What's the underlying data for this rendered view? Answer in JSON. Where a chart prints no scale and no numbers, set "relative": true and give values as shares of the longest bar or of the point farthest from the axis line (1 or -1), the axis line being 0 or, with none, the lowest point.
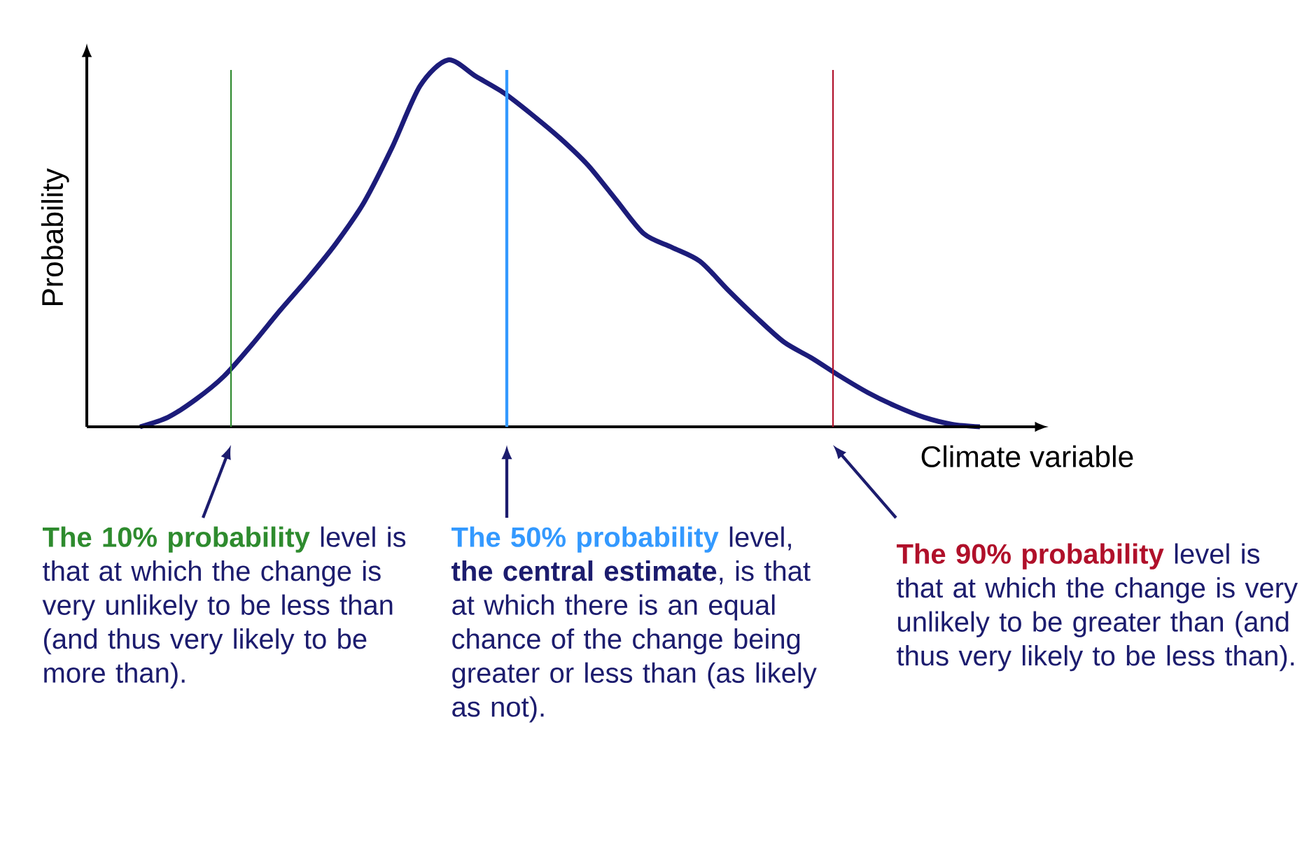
{
  "chart_data": {
    "type": "line",
    "relative": true,
    "xlabel": "Climate variable",
    "ylabel": "Probability",
    "categories": [
      null,
      null,
      null,
      null,
      null,
      null,
      null,
      null,
      null,
      null,
      null,
      null,
      null,
      null,
      null,
      null,
      null,
      null,
      null,
      null,
      null,
      null,
      null,
      null,
      null,
      null,
      null,
      null,
      null,
      null,
      null
    ],
    "series": [
      {
        "color": "#1c1c7a",
        "values": [
          0,
          0.026,
          0.075,
          0.138,
          0.224,
          0.317,
          0.405,
          0.5,
          0.612,
          0.761,
          0.929,
          1.0,
          0.955,
          0.91,
          0.851,
          0.787,
          0.713,
          0.619,
          0.526,
          0.489,
          0.451,
          0.373,
          0.299,
          0.231,
          0.187,
          0.138,
          0.093,
          0.056,
          0.026,
          0.007,
          0
        ]
      }
    ],
    "annotations": [
      "**The 10%  probability** level is that at which the change is very unlikely to be less than (and thus very likely to be more than).",
      "**The 50%  probability** level, **the central estimate**, is that at which there is an equal chance of the change being greater or less than (as likely as not).",
      "**The 90%  probability** level is that at which the change is very unlikely to be greater than (and thus very likely to be less than)."
    ]
  }
}
